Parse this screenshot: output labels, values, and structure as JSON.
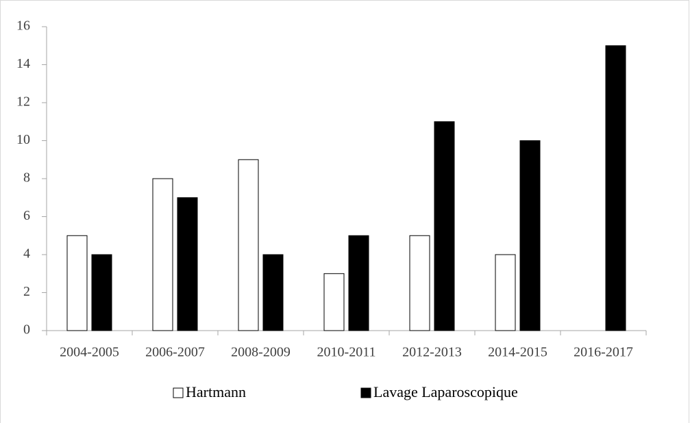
{
  "chart_data": {
    "type": "bar",
    "categories": [
      "2004-2005",
      "2006-2007",
      "2008-2009",
      "2010-2011",
      "2012-2013",
      "2014-2015",
      "2016-2017"
    ],
    "series": [
      {
        "name": "Hartmann",
        "color": "#ffffff",
        "values": [
          5,
          8,
          9,
          3,
          5,
          4,
          0
        ]
      },
      {
        "name": "Lavage Laparoscopique",
        "color": "#000000",
        "values": [
          4,
          7,
          4,
          5,
          11,
          10,
          15
        ]
      }
    ],
    "ylim": [
      0,
      16
    ],
    "yticks": [
      0,
      2,
      4,
      6,
      8,
      10,
      12,
      14,
      16
    ],
    "grid": false,
    "legend": "bottom"
  }
}
